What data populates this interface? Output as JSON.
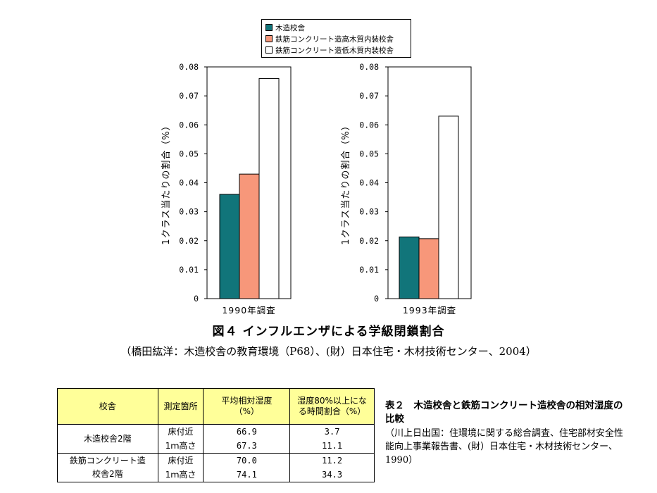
{
  "legend": [
    {
      "label": "木造校舎",
      "color": "#11757a"
    },
    {
      "label": "鉄筋コンクリート造高木質内装校舎",
      "color": "#f7977a"
    },
    {
      "label": "鉄筋コンクリート造低木質内装校舎",
      "color": "#ffffff"
    }
  ],
  "chart_data": [
    {
      "type": "bar",
      "xlabel": "1990年調査",
      "ylabel": "1クラス当たりの割合（%）",
      "ylim": [
        0,
        0.08
      ],
      "yticks": [
        "0",
        "0.01",
        "0.02",
        "0.03",
        "0.04",
        "0.05",
        "0.06",
        "0.07",
        "0.08"
      ],
      "series": [
        {
          "name": "木造校舎",
          "values": [
            0.036
          ]
        },
        {
          "name": "鉄筋コンクリート造高木質内装校舎",
          "values": [
            0.043
          ]
        },
        {
          "name": "鉄筋コンクリート造低木質内装校舎",
          "values": [
            0.076
          ]
        }
      ],
      "grid": false
    },
    {
      "type": "bar",
      "xlabel": "1993年調査",
      "ylabel": "1クラス当たりの割合（%）",
      "ylim": [
        0,
        0.08
      ],
      "yticks": [
        "0",
        "0.01",
        "0.02",
        "0.03",
        "0.04",
        "0.05",
        "0.06",
        "0.07",
        "0.08"
      ],
      "series": [
        {
          "name": "木造校舎",
          "values": [
            0.0213
          ]
        },
        {
          "name": "鉄筋コンクリート造高木質内装校舎",
          "values": [
            0.0207
          ]
        },
        {
          "name": "鉄筋コンクリート造低木質内装校舎",
          "values": [
            0.063
          ]
        }
      ],
      "grid": false
    }
  ],
  "figure": {
    "caption": "図４ インフルエンザによる学級閉鎖割合",
    "source": "（橋田紘洋：木造校舎の教育環境（P68）、(財）日本住宅・木材技術センター、2004）"
  },
  "table": {
    "headers": [
      "校舎",
      "測定箇所",
      "平均相対湿度\n（%）",
      "湿度80%以上にな\nる時間割合（%）"
    ],
    "groups": [
      {
        "name": "木造校舎2階",
        "rows": [
          {
            "location": "床付近",
            "humidity": "66.9",
            "ratio": "3.7"
          },
          {
            "location": "1ｍ高さ",
            "humidity": "67.3",
            "ratio": "11.1"
          }
        ]
      },
      {
        "name": "鉄筋コンクリート造\n校舎2階",
        "rows": [
          {
            "location": "床付近",
            "humidity": "70.0",
            "ratio": "11.2"
          },
          {
            "location": "1ｍ高さ",
            "humidity": "74.1",
            "ratio": "34.3"
          }
        ]
      }
    ],
    "caption": {
      "title": "表２　木造校舎と鉄筋コンクリート造校舎の相対湿度の比較",
      "source": "（川上日出国：住環境に関する総合調査、住宅部材安全性能向上事業報告書、(財）日本住宅・木材技術センター、1990）"
    }
  }
}
